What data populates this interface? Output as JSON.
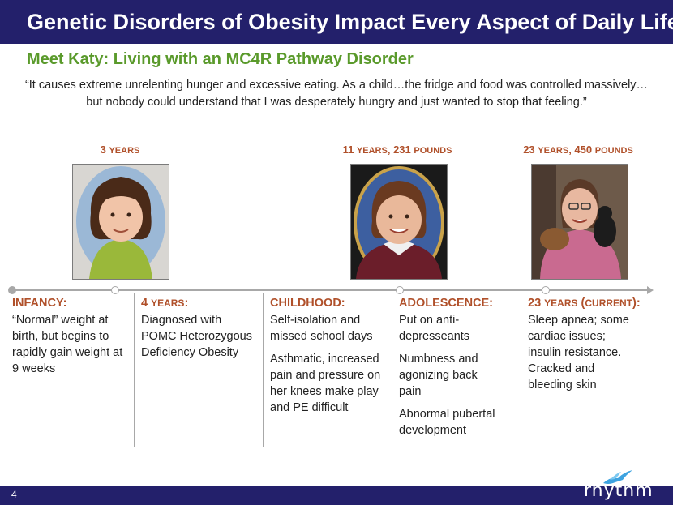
{
  "header": {
    "title": "Genetic Disorders of Obesity Impact Every Aspect of Daily Life"
  },
  "subtitle": "Meet Katy: Living with an MC4R Pathway Disorder",
  "quote": "“It causes extreme unrelenting hunger and excessive eating. As a child…the fridge and food was controlled massively…but nobody could understand that I was desperately hungry and just wanted to stop that feeling.”",
  "photos": [
    {
      "label_main": "3",
      "label_small": "YEARS",
      "label_rest": ""
    },
    {
      "label_main": "11",
      "label_small": "YEARS",
      "label_rest": ", 231 ",
      "label_small2": "POUNDS"
    },
    {
      "label_main": "23",
      "label_small": "YEARS",
      "label_rest": ", 450 ",
      "label_small2": "POUNDS"
    }
  ],
  "timeline": [
    {
      "heading": "INFANCY:",
      "items": [
        "“Normal” weight at birth, but begins to rapidly gain weight at 9 weeks"
      ]
    },
    {
      "heading_main": "4 ",
      "heading_small": "YEARS",
      "heading_end": ":",
      "items": [
        "Diagnosed with POMC Heterozygous Deficiency Obesity"
      ]
    },
    {
      "heading": "CHILDHOOD:",
      "items": [
        "Self-isolation and missed school days",
        "Asthmatic, increased pain and pressure on her knees make play and PE difficult"
      ]
    },
    {
      "heading": "ADOLESCENCE:",
      "items": [
        "Put on anti-depresseants",
        "Numbness and agonizing back pain",
        "Abnormal pubertal development"
      ]
    },
    {
      "heading_main": "23 ",
      "heading_small": "YEARS",
      "heading_paren_open": " (",
      "heading_small2": "CURRENT",
      "heading_end": "):",
      "items": [
        "Sleep apnea; some cardiac issues; insulin resistance. Cracked and bleeding skin"
      ]
    }
  ],
  "footer": {
    "page_number": "4",
    "logo_text": "rhythm"
  },
  "colors": {
    "navy": "#23206b",
    "green": "#5a9a2b",
    "rust": "#b0502a"
  }
}
